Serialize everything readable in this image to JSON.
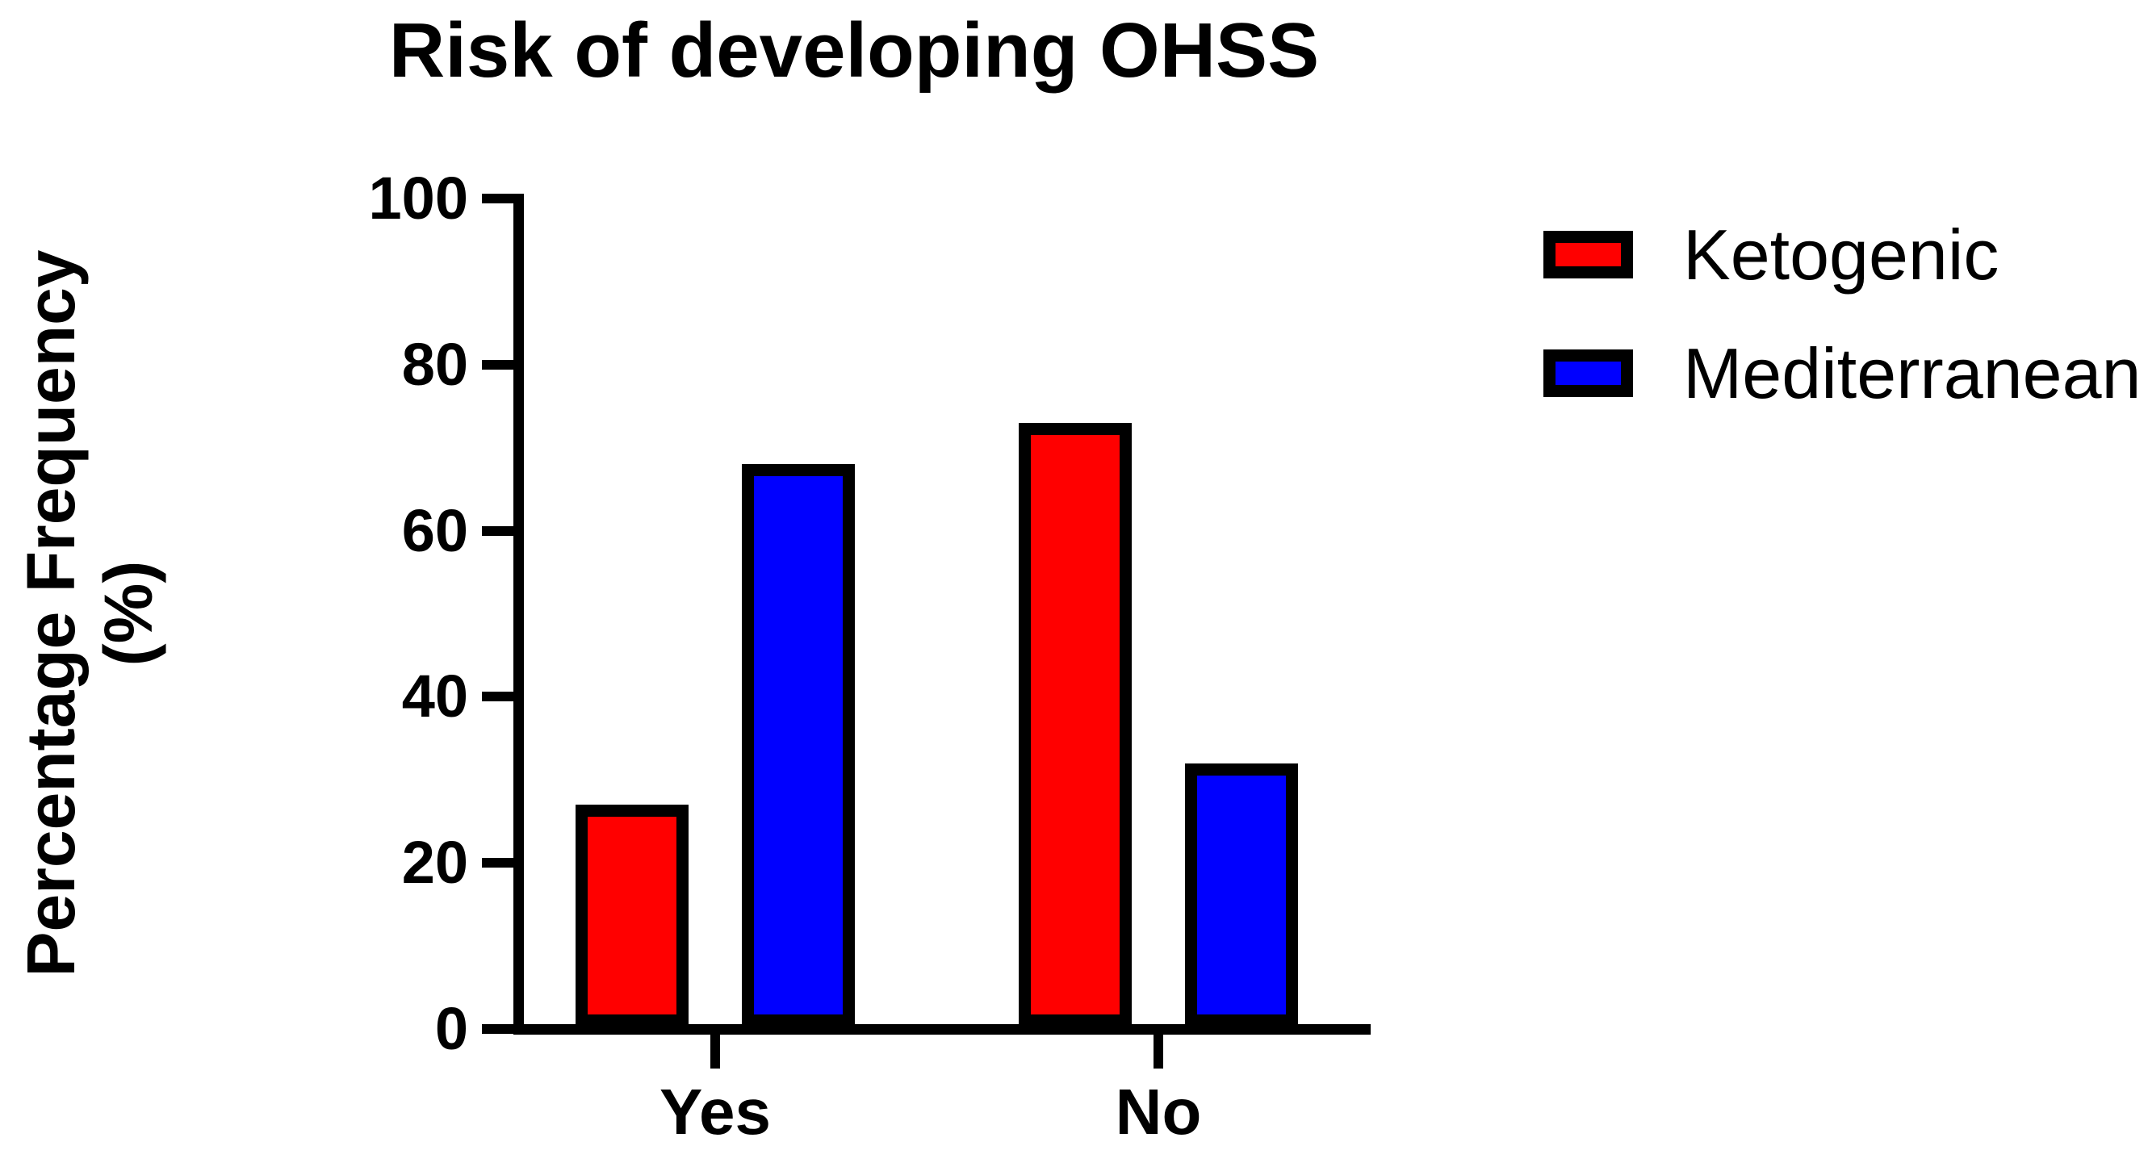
{
  "chart": {
    "title": "Risk of developing OHSS",
    "y_axis": {
      "label_line1": "Percentage Frequency",
      "label_line2": "(%)",
      "ticks": [
        0,
        20,
        40,
        60,
        80,
        100
      ]
    },
    "x_axis": {
      "categories": [
        "Yes",
        "No"
      ]
    },
    "legend": {
      "items": [
        {
          "label": "Ketogenic",
          "color": "#FF0000"
        },
        {
          "label": "Mediterranean",
          "color": "#0000FF"
        }
      ]
    }
  },
  "chart_data": {
    "type": "bar",
    "title": "Risk of developing OHSS",
    "categories": [
      "Yes",
      "No"
    ],
    "series": [
      {
        "name": "Ketogenic",
        "color": "#FF0000",
        "values": [
          27,
          73
        ]
      },
      {
        "name": "Mediterranean",
        "color": "#0000FF",
        "values": [
          68,
          32
        ]
      }
    ],
    "xlabel": "",
    "ylabel": "Percentage Frequency (%)",
    "ylim": [
      0,
      100
    ],
    "ytick_step": 20,
    "grid": false,
    "bar_outline_color": "#000000",
    "legend_position": "right"
  }
}
